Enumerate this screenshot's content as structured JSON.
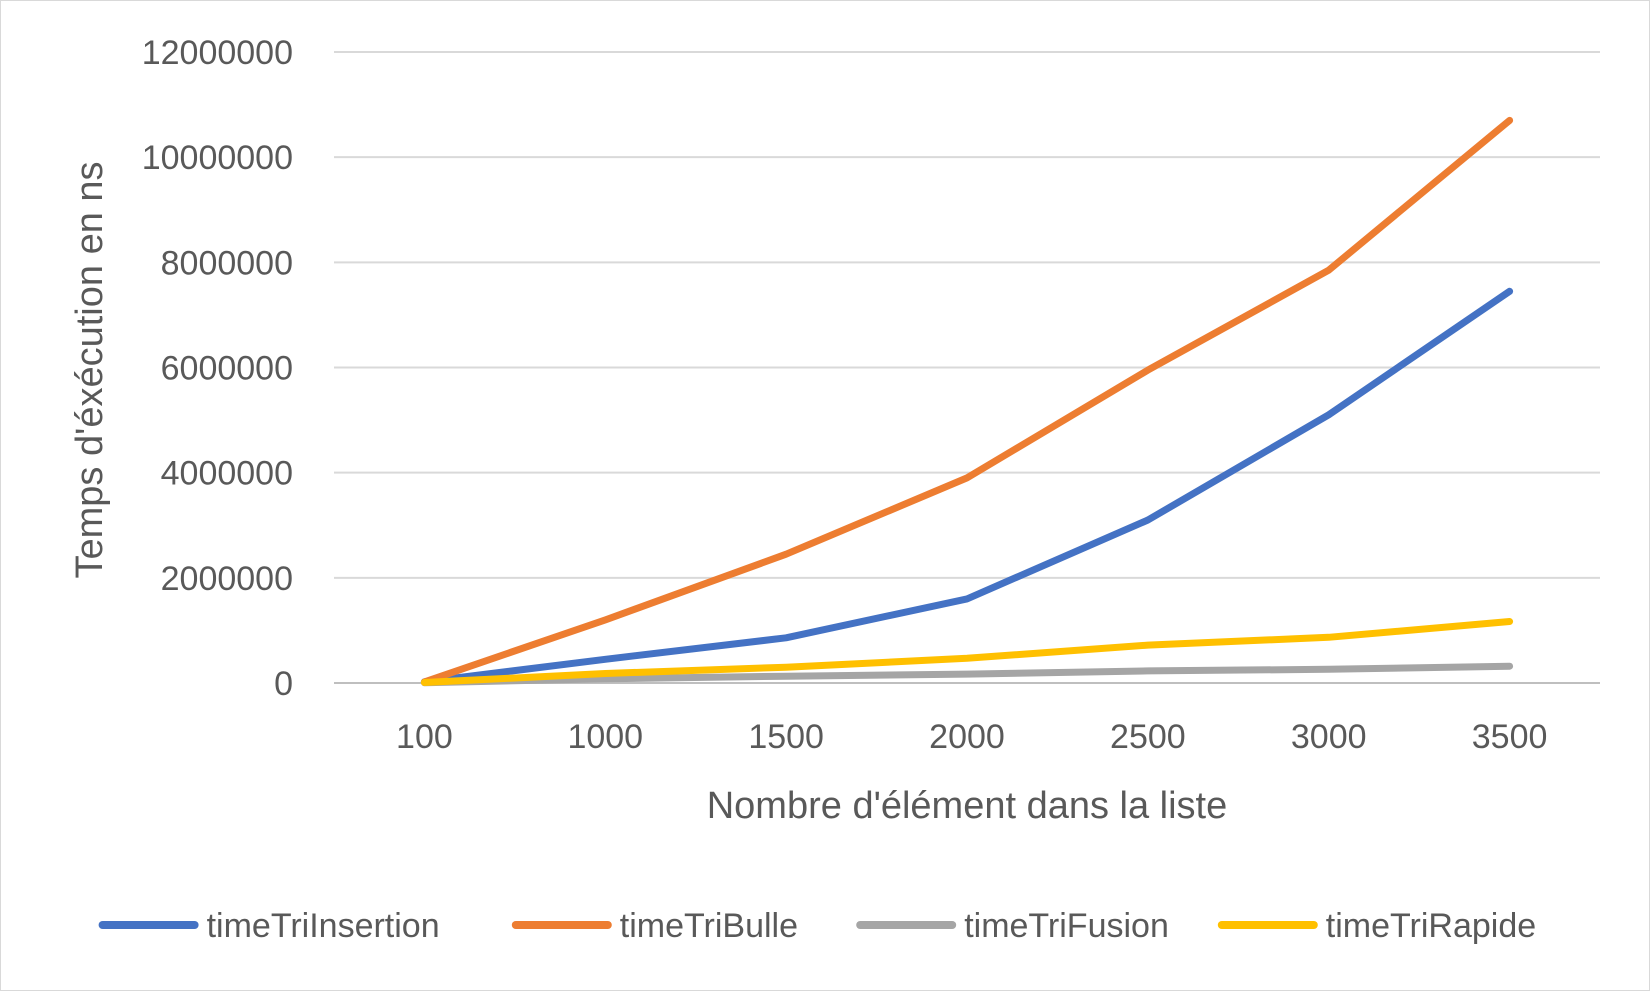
{
  "chart_data": {
    "type": "line",
    "title": "",
    "xlabel": "Nombre d'élément dans la liste",
    "ylabel": "Temps d'éxécution en ns",
    "categories": [
      "100",
      "1000",
      "1500",
      "2000",
      "2500",
      "3000",
      "3500"
    ],
    "ylim": [
      0,
      12000000
    ],
    "yticks": [
      "0",
      "2000000",
      "4000000",
      "6000000",
      "8000000",
      "10000000",
      "12000000"
    ],
    "ytick_values": [
      0,
      2000000,
      4000000,
      6000000,
      8000000,
      10000000,
      12000000
    ],
    "grid": true,
    "legend_position": "bottom",
    "series": [
      {
        "name": "timeTriInsertion",
        "color": "#4472C4",
        "values": [
          20000,
          450000,
          860000,
          1600000,
          3100000,
          5100000,
          7450000
        ]
      },
      {
        "name": "timeTriBulle",
        "color": "#ED7D31",
        "values": [
          20000,
          1200000,
          2450000,
          3900000,
          5950000,
          7850000,
          10700000
        ]
      },
      {
        "name": "timeTriFusion",
        "color": "#A5A5A5",
        "values": [
          5000,
          80000,
          130000,
          170000,
          230000,
          260000,
          320000
        ]
      },
      {
        "name": "timeTriRapide",
        "color": "#FFC000",
        "values": [
          10000,
          180000,
          300000,
          470000,
          720000,
          870000,
          1170000
        ]
      }
    ]
  }
}
